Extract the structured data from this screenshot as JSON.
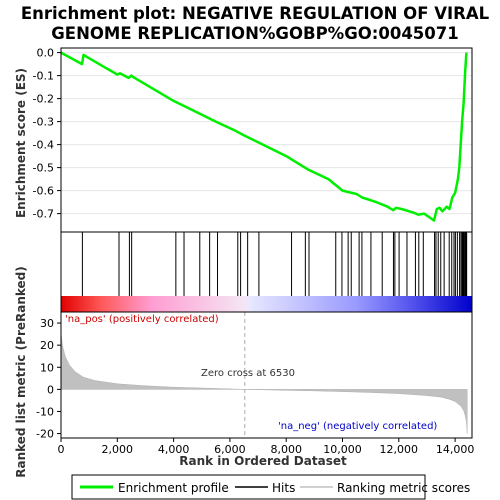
{
  "chart_data": {
    "type": "line",
    "title_lines": [
      "Enrichment plot: NEGATIVE REGULATION OF VIRAL",
      "GENOME REPLICATION%GOBP%GO:0045071"
    ],
    "top_panel": {
      "ylabel": "Enrichment score (ES)",
      "ylim": [
        -0.78,
        0.02
      ],
      "yticks": [
        "0.0",
        "-0.1",
        "-0.2",
        "-0.3",
        "-0.4",
        "-0.5",
        "-0.6",
        "-0.7"
      ],
      "ytick_values": [
        0.0,
        -0.1,
        -0.2,
        -0.3,
        -0.4,
        -0.5,
        -0.6,
        -0.7
      ],
      "series": [
        {
          "name": "Enrichment profile",
          "color": "#00ee00",
          "x": [
            0,
            750,
            800,
            1500,
            2000,
            2100,
            2250,
            2400,
            2500,
            2550,
            4000,
            4500,
            5500,
            6200,
            6500,
            7000,
            8000,
            8800,
            9500,
            10000,
            10500,
            10700,
            11200,
            11600,
            11800,
            11900,
            12100,
            12500,
            12700,
            12900,
            13250,
            13350,
            13450,
            13550,
            13700,
            13800,
            13900,
            14000,
            14050,
            14100,
            14150,
            14200,
            14250,
            14300,
            14330,
            14360,
            14400
          ],
          "y": [
            0.0,
            -0.05,
            -0.01,
            -0.06,
            -0.095,
            -0.09,
            -0.1,
            -0.11,
            -0.1,
            -0.105,
            -0.21,
            -0.24,
            -0.3,
            -0.34,
            -0.36,
            -0.39,
            -0.45,
            -0.51,
            -0.55,
            -0.6,
            -0.615,
            -0.63,
            -0.65,
            -0.67,
            -0.685,
            -0.675,
            -0.68,
            -0.695,
            -0.705,
            -0.7,
            -0.73,
            -0.68,
            -0.675,
            -0.69,
            -0.67,
            -0.68,
            -0.63,
            -0.61,
            -0.58,
            -0.55,
            -0.5,
            -0.4,
            -0.3,
            -0.22,
            -0.15,
            -0.08,
            0.0
          ]
        }
      ]
    },
    "hits_panel": {
      "hits": [
        760,
        2060,
        2430,
        2510,
        4080,
        4370,
        4930,
        5280,
        5560,
        6280,
        6380,
        6630,
        7030,
        8190,
        8680,
        8810,
        9760,
        9980,
        10200,
        10310,
        10590,
        10690,
        11010,
        11410,
        11810,
        11860,
        12010,
        12290,
        12590,
        12710,
        12870,
        13270,
        13320,
        13400,
        13490,
        13610,
        13790,
        13880,
        13960,
        14010,
        14080,
        14160,
        14210,
        14250,
        14280,
        14310,
        14340,
        14370,
        14390,
        14410
      ]
    },
    "bottom_panel": {
      "ylabel": "Ranked list metric (PreRanked)",
      "xlabel": "Rank in Ordered Dataset",
      "ylim": [
        -22,
        35
      ],
      "yticks": [
        "30",
        "20",
        "10",
        "0",
        "-10",
        "-20"
      ],
      "ytick_values": [
        30,
        20,
        10,
        0,
        -10,
        -20
      ],
      "xlim": [
        0,
        14600
      ],
      "xticks": [
        "0",
        "2,000",
        "4,000",
        "6,000",
        "8,000",
        "10,000",
        "12,000",
        "14,000"
      ],
      "xtick_values": [
        0,
        2000,
        4000,
        6000,
        8000,
        10000,
        12000,
        14000
      ],
      "metric_x": [
        0,
        50,
        150,
        300,
        500,
        800,
        1200,
        2000,
        3000,
        4000,
        5000,
        6000,
        6530,
        7500,
        9000,
        10000,
        11000,
        12000,
        13000,
        13500,
        13800,
        14000,
        14200,
        14300,
        14350,
        14400,
        14430
      ],
      "metric_y": [
        26,
        20,
        15,
        11,
        8,
        5.5,
        4,
        2.5,
        1.6,
        1.0,
        0.6,
        0.2,
        0,
        -0.3,
        -0.7,
        -1.0,
        -1.4,
        -1.9,
        -2.8,
        -3.5,
        -4.5,
        -5.5,
        -7.5,
        -9.5,
        -11.5,
        -14.5,
        -20
      ],
      "zero_cross_label": "Zero cross at 6530",
      "zero_cross": 6530,
      "pos_label": "'na_pos' (positively correlated)",
      "neg_label": "'na_neg' (negatively correlated)"
    },
    "legend": [
      {
        "label": "Enrichment profile",
        "color": "#00ee00"
      },
      {
        "label": "Hits",
        "color": "#000000"
      },
      {
        "label": "Ranking metric scores",
        "color": "#c0c0c0"
      }
    ]
  }
}
